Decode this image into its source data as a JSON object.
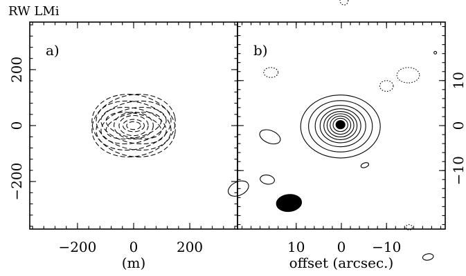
{
  "figure_title": "RW LMi",
  "chart_data": [
    {
      "type": "uv-coverage",
      "panel_label": "a)",
      "xlabel": "(m)",
      "ylabel": "",
      "xlim": [
        -370,
        370
      ],
      "ylim": [
        -370,
        370
      ],
      "xticks": [
        -200,
        0,
        200
      ],
      "xtick_labels": [
        "−200",
        "0",
        "200"
      ],
      "yticks": [
        -200,
        0,
        200
      ],
      "ytick_labels": [
        "−200",
        "0",
        "200"
      ],
      "tracks": [
        {
          "rx": 150,
          "ry": 110,
          "tilt": -12
        },
        {
          "rx": 135,
          "ry": 85,
          "tilt": -12
        },
        {
          "rx": 118,
          "ry": 62,
          "tilt": -12
        },
        {
          "rx": 100,
          "ry": 44,
          "tilt": -12
        },
        {
          "rx": 150,
          "ry": 110,
          "tilt": 12
        },
        {
          "rx": 135,
          "ry": 85,
          "tilt": 12
        },
        {
          "rx": 118,
          "ry": 62,
          "tilt": 12
        },
        {
          "rx": 100,
          "ry": 44,
          "tilt": 12
        },
        {
          "rx": 70,
          "ry": 48,
          "tilt": 0
        },
        {
          "rx": 52,
          "ry": 36,
          "tilt": 0
        },
        {
          "rx": 38,
          "ry": 22,
          "tilt": 0
        },
        {
          "rx": 25,
          "ry": 14,
          "tilt": 0
        }
      ]
    },
    {
      "type": "contour-map",
      "panel_label": "b)",
      "xlabel": "offset (arcsec.)",
      "ylabel": "",
      "xlim": [
        23,
        -23
      ],
      "ylim": [
        -23,
        23
      ],
      "xticks": [
        10,
        0,
        -10
      ],
      "xtick_labels": [
        "10",
        "0",
        "−10"
      ],
      "yticks": [
        10,
        0,
        -10
      ],
      "ytick_labels": [
        "10",
        "0",
        "−10"
      ],
      "source": {
        "x": 0.2,
        "y": 0.2,
        "contour_radii": [
          1.0,
          1.6,
          2.2,
          2.8,
          3.4,
          4.1,
          5.0,
          6.2,
          7.6
        ]
      },
      "positive_contours": [
        {
          "x": 15.8,
          "y": -2.5,
          "rx": 2.4,
          "ry": 1.4,
          "tilt": -22
        },
        {
          "x": 16.4,
          "y": -12.0,
          "rx": 1.6,
          "ry": 1.0,
          "tilt": -10
        },
        {
          "x": 22.8,
          "y": -14.0,
          "rx": 2.4,
          "ry": 1.5,
          "tilt": 25
        },
        {
          "x": -5.2,
          "y": -8.8,
          "rx": 0.9,
          "ry": 0.5,
          "tilt": 20
        },
        {
          "x": -19.2,
          "y": -29.2,
          "rx": 1.2,
          "ry": 0.7,
          "tilt": 10
        },
        {
          "x": -20.8,
          "y": 16.2,
          "rx": 0.3,
          "ry": 0.3,
          "tilt": 0
        }
      ],
      "filled_contours": [
        {
          "x": 11.6,
          "y": -17.2,
          "rx": 2.8,
          "ry": 1.9,
          "tilt": 6
        }
      ],
      "negative_contours": [
        {
          "x": -0.6,
          "y": 27.8,
          "rx": 0.9,
          "ry": 1.0,
          "tilt": 0
        },
        {
          "x": 15.6,
          "y": 11.8,
          "rx": 1.6,
          "ry": 1.1,
          "tilt": 0
        },
        {
          "x": -10.0,
          "y": 8.8,
          "rx": 1.5,
          "ry": 1.2,
          "tilt": 0
        },
        {
          "x": -14.8,
          "y": 11.2,
          "rx": 2.5,
          "ry": 1.7,
          "tilt": 0
        },
        {
          "x": -15.0,
          "y": -22.6,
          "rx": 0.7,
          "ry": 0.6,
          "tilt": 0
        }
      ]
    }
  ]
}
